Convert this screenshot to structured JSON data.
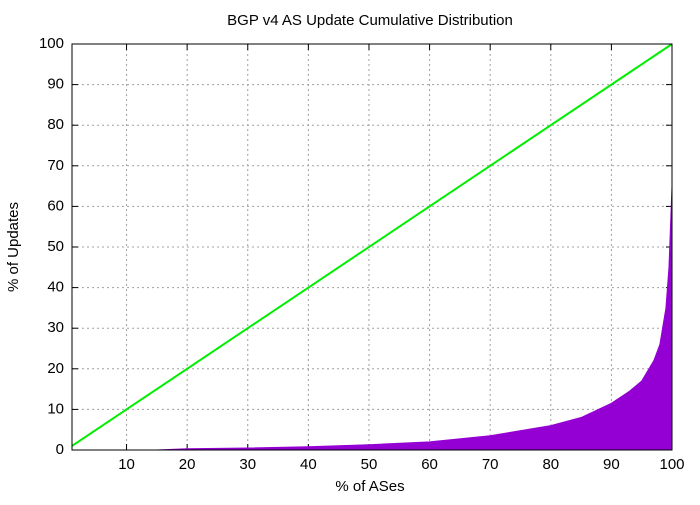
{
  "chart_data": {
    "type": "line",
    "title": "BGP v4 AS Update Cumulative Distribution",
    "x_label": "% of ASes",
    "y_label": "% of Updates",
    "xlim": [
      1,
      100
    ],
    "ylim": [
      0,
      100
    ],
    "xticks": [
      10,
      20,
      30,
      40,
      50,
      60,
      70,
      80,
      90,
      100
    ],
    "yticks": [
      0,
      10,
      20,
      30,
      40,
      50,
      60,
      70,
      80,
      90,
      100
    ],
    "grid": true,
    "series": [
      {
        "color": "#9400d3",
        "fill": true,
        "x": [
          15,
          20,
          30,
          40,
          50,
          60,
          70,
          80,
          85,
          90,
          93,
          95,
          97,
          98,
          99,
          99.5,
          100
        ],
        "values": [
          0,
          0.3,
          0.5,
          0.8,
          1.3,
          2,
          3.5,
          6,
          8,
          11.5,
          14.5,
          17,
          22,
          26,
          35,
          45,
          65
        ]
      },
      {
        "color": "#00ee00",
        "fill": false,
        "x": [
          1,
          100
        ],
        "values": [
          1,
          100
        ]
      }
    ]
  }
}
